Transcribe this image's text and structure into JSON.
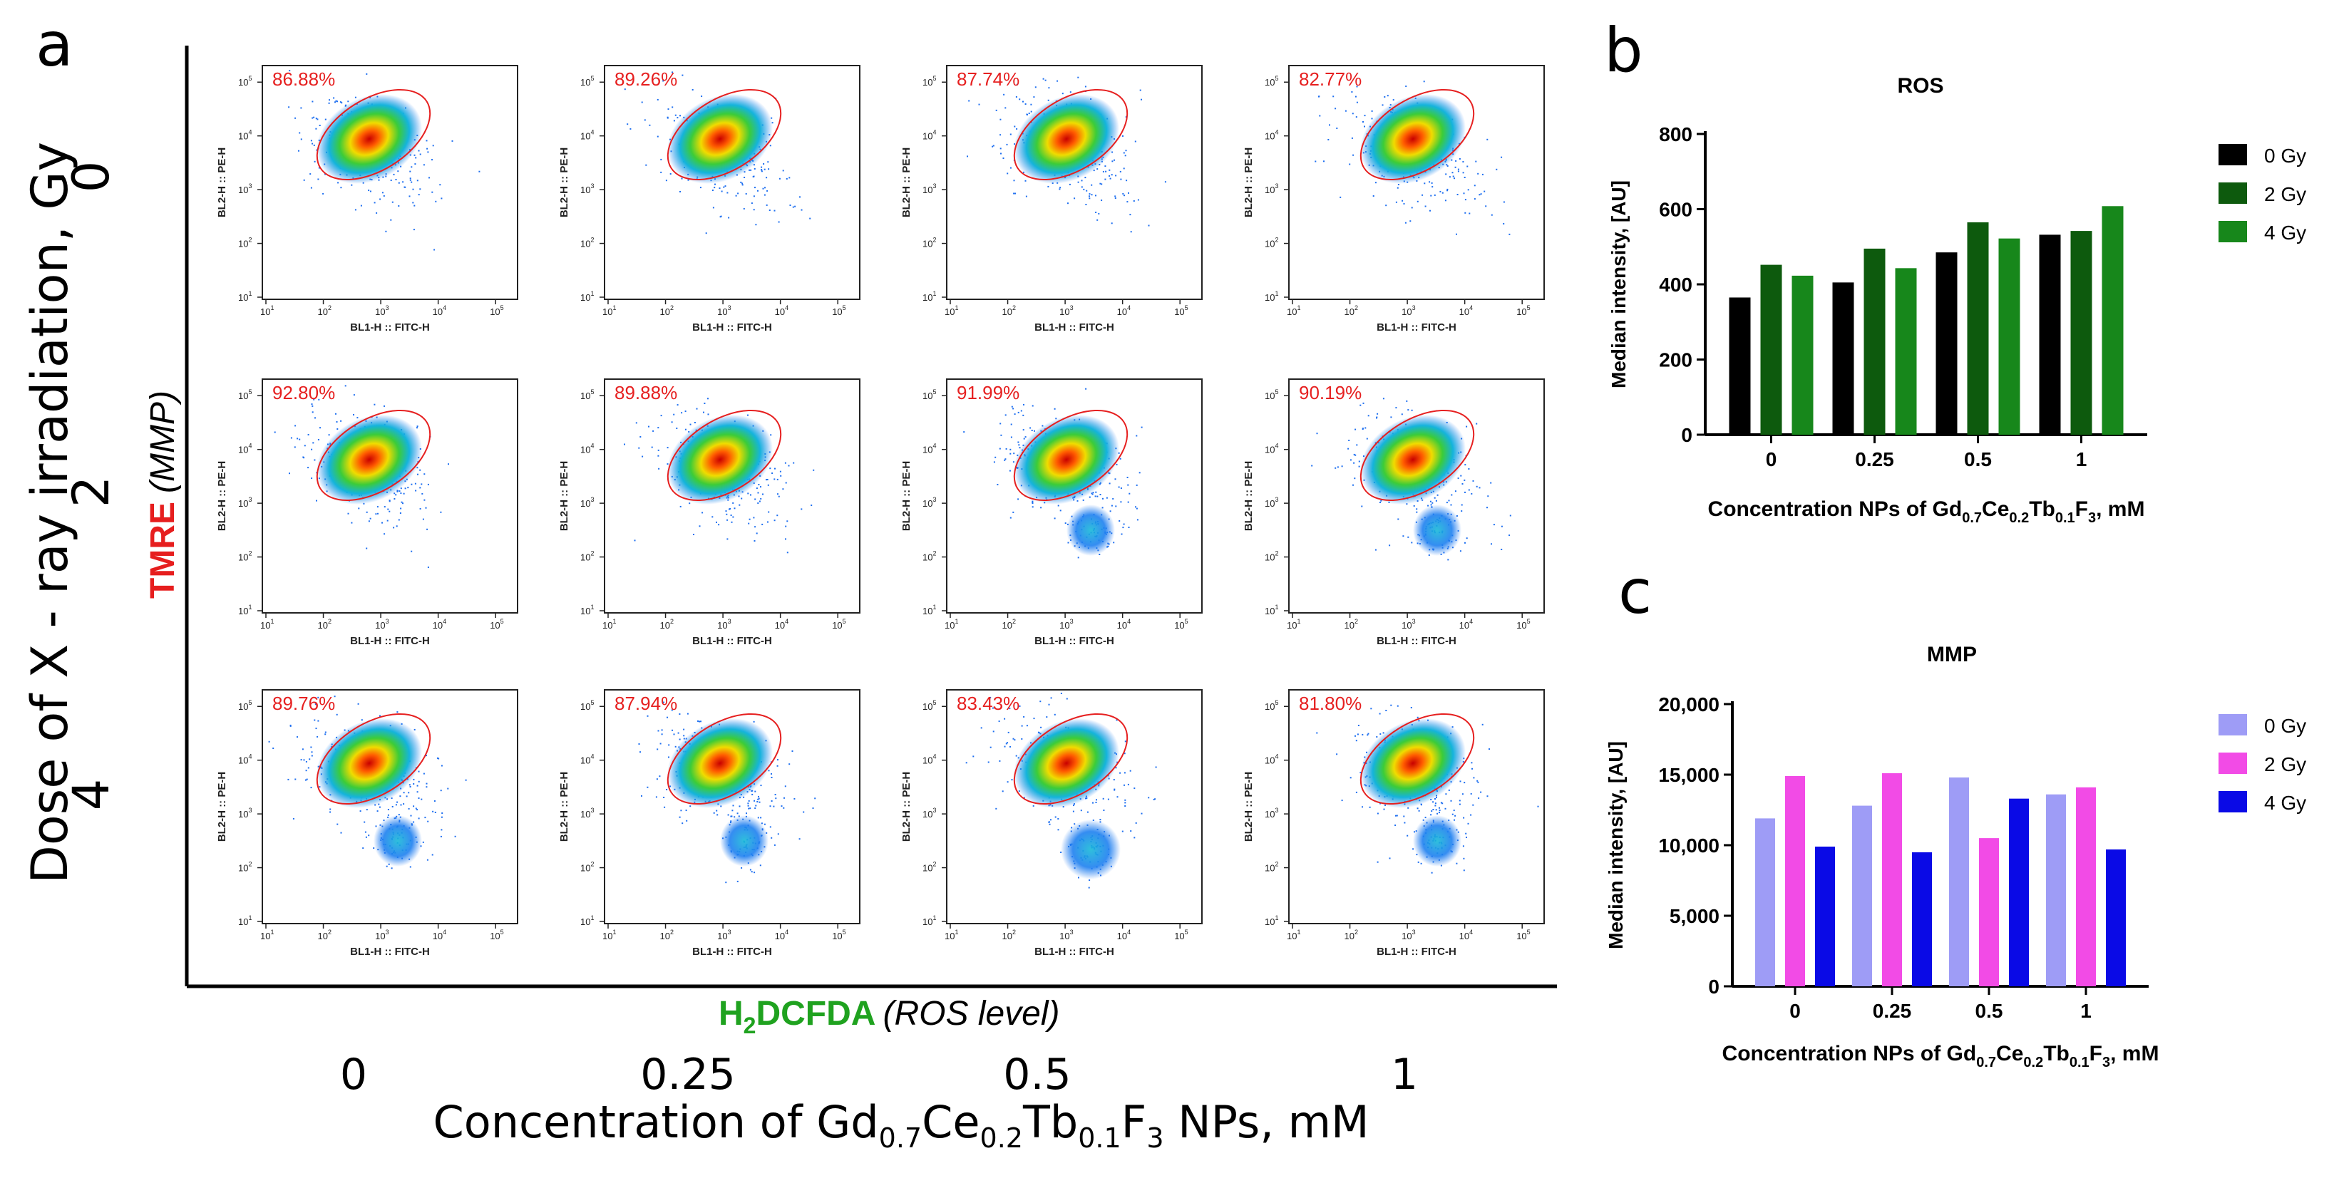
{
  "panel_a": {
    "letter": "a",
    "y_title_prefix": "TMRE",
    "y_title_suffix": "(MMP)",
    "x_title_prefix": "H",
    "x_title_sub": "2",
    "x_title_main": "DCFDA",
    "x_title_suffix": "(ROS level)",
    "dose_label": "Dose of X - ray irradiation, Gy",
    "dose_values": [
      "0",
      "2",
      "4"
    ],
    "concentration_values": [
      "0",
      "0.25",
      "0.5",
      "1"
    ],
    "conc_axis_parts": [
      "Concentration of Gd",
      "0.7",
      "Ce",
      "0.2",
      "Tb",
      "0.1",
      "F",
      "3",
      " NPs, mM"
    ],
    "plot_xlabel": "BL1-H :: FITC-H",
    "plot_ylabel": "BL2-H :: PE-H",
    "log_tick_labels": [
      "10",
      "10",
      "10",
      "10",
      "10"
    ],
    "log_tick_exponents": [
      "1",
      "2",
      "3",
      "4",
      "5"
    ],
    "percentages": [
      [
        "86.88%",
        "89.26%",
        "87.74%",
        "82.77%"
      ],
      [
        "92.80%",
        "89.88%",
        "91.99%",
        "90.19%"
      ],
      [
        "89.76%",
        "87.94%",
        "83.43%",
        "81.80%"
      ]
    ]
  },
  "panel_b": {
    "letter": "b"
  },
  "panel_c": {
    "letter": "c"
  },
  "chart_data": [
    {
      "type": "bar",
      "title": "ROS",
      "ylabel": "Median intensity, [AU]",
      "xlabel_parts": [
        "Concentration NPs of Gd",
        "0.7",
        "Ce",
        "0.2",
        "Tb",
        "0.1",
        "F",
        "3",
        ", mM"
      ],
      "categories": [
        "0",
        "0.25",
        "0.5",
        "1"
      ],
      "ylim": [
        0,
        800
      ],
      "yticks": [
        0,
        200,
        400,
        600,
        800
      ],
      "ytick_labels": [
        "0",
        "200",
        "400",
        "600",
        "800"
      ],
      "legend_position": "right",
      "series": [
        {
          "name": "0 Gy",
          "color": "#000000",
          "values": [
            365,
            405,
            485,
            532
          ]
        },
        {
          "name": "2 Gy",
          "color": "#0d5a0d",
          "values": [
            452,
            495,
            565,
            542
          ]
        },
        {
          "name": "4 Gy",
          "color": "#17871b",
          "values": [
            423,
            443,
            522,
            608
          ]
        }
      ]
    },
    {
      "type": "bar",
      "title": "MMP",
      "ylabel": "Median intensity, [AU]",
      "xlabel_parts": [
        "Concentration NPs of Gd",
        "0.7",
        "Ce",
        "0.2",
        "Tb",
        "0.1",
        "F",
        "3",
        ", mM"
      ],
      "categories": [
        "0",
        "0.25",
        "0.5",
        "1"
      ],
      "ylim": [
        0,
        20000
      ],
      "yticks": [
        0,
        5000,
        10000,
        15000,
        20000
      ],
      "ytick_labels": [
        "0",
        "5,000",
        "10,000",
        "15,000",
        "20,000"
      ],
      "legend_position": "right",
      "series": [
        {
          "name": "0 Gy",
          "color": "#9e9cf6",
          "values": [
            11900,
            12800,
            14800,
            13600
          ]
        },
        {
          "name": "2 Gy",
          "color": "#f24be6",
          "values": [
            14900,
            15100,
            10500,
            14100
          ]
        },
        {
          "name": "4 Gy",
          "color": "#0a0ae6",
          "values": [
            9900,
            9500,
            13300,
            9700
          ]
        }
      ]
    }
  ]
}
